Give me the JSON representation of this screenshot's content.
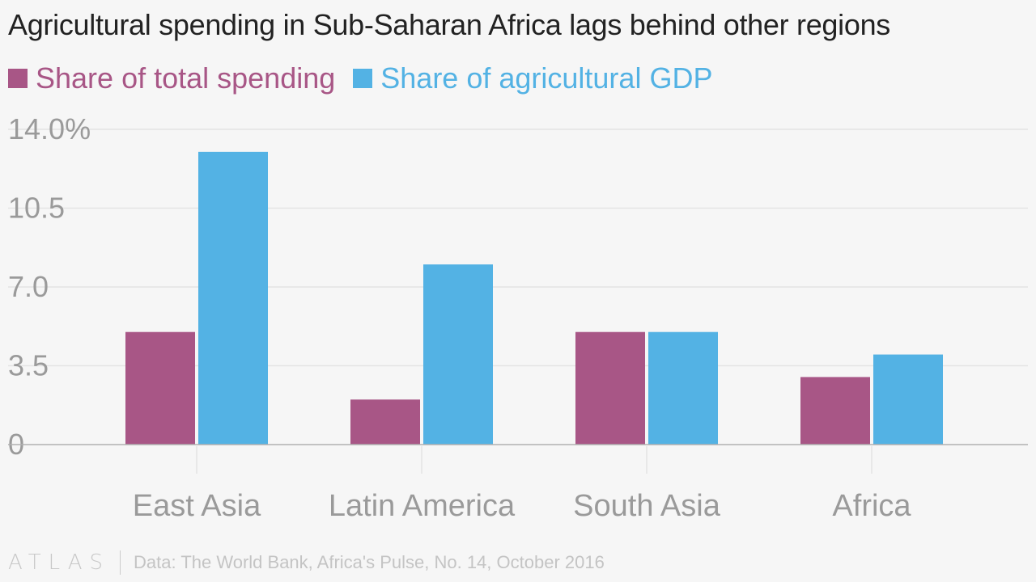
{
  "title": "Agricultural spending in Sub-Saharan Africa lags behind other regions",
  "legend": [
    {
      "label": "Share of total spending",
      "color": "#a85686"
    },
    {
      "label": "Share of agricultural GDP",
      "color": "#53b2e4"
    }
  ],
  "footer": {
    "logo": "ATLAS",
    "source": "Data: The World Bank, Africa's Pulse, No. 14, October 2016"
  },
  "colors": {
    "axis_text": "#9a9a9a",
    "gridline": "#e3e3e3",
    "baseline": "#b0b0b0"
  },
  "chart_data": {
    "type": "bar",
    "title": "Agricultural spending in Sub-Saharan Africa lags behind other regions",
    "xlabel": "",
    "ylabel": "",
    "categories": [
      "East Asia",
      "Latin America",
      "South Asia",
      "Africa"
    ],
    "series": [
      {
        "name": "Share of total spending",
        "color": "#a85686",
        "values": [
          5.0,
          2.0,
          5.0,
          3.0
        ]
      },
      {
        "name": "Share of agricultural GDP",
        "color": "#53b2e4",
        "values": [
          13.0,
          8.0,
          5.0,
          4.0
        ]
      }
    ],
    "ylim": [
      0,
      14
    ],
    "yticks": [
      0,
      3.5,
      7,
      10.5,
      14
    ],
    "ytick_labels": [
      "0",
      "3.5",
      "7.0",
      "10.5",
      "14.0%"
    ],
    "grid": true,
    "legend_position": "top-left"
  }
}
